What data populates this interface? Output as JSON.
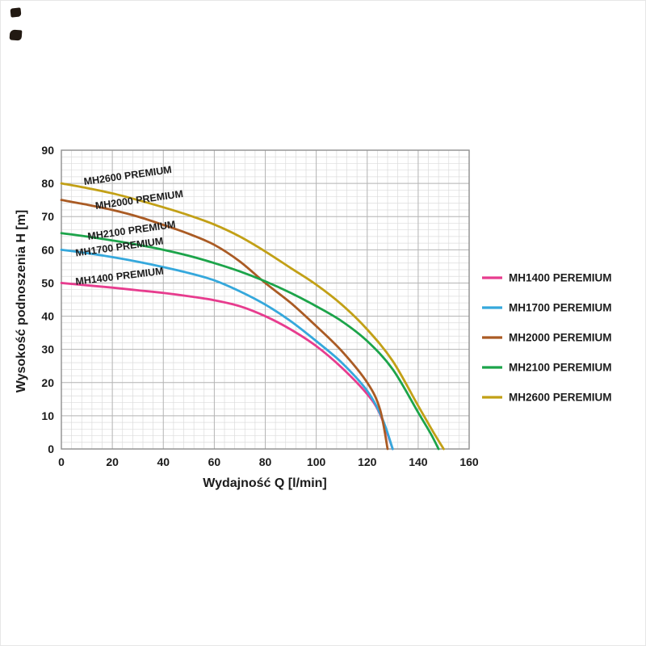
{
  "decor": {
    "scan_mark_color": "#221912"
  },
  "chart_data": {
    "type": "line",
    "title": "",
    "xlabel": "Wydajność Q [l/min]",
    "ylabel": "Wysokość podnoszenia H [m]",
    "xlim": [
      0,
      160
    ],
    "ylim": [
      0,
      90
    ],
    "x_ticks": [
      0,
      20,
      40,
      60,
      80,
      100,
      120,
      140,
      160
    ],
    "y_ticks": [
      0,
      10,
      20,
      30,
      40,
      50,
      60,
      70,
      80,
      90
    ],
    "x_minor_step": 4,
    "y_minor_step": 2,
    "grid": true,
    "legend_position": "right",
    "grid_minor_color": "#dcdcdc",
    "grid_major_color": "#b5b5b5",
    "border_color": "#8f8f8f",
    "series": [
      {
        "name": "MH1400 PEREMIUM",
        "color": "#e73c8e",
        "points": [
          [
            0,
            50
          ],
          [
            10,
            49.3
          ],
          [
            20,
            48.6
          ],
          [
            30,
            47.8
          ],
          [
            40,
            47
          ],
          [
            50,
            46
          ],
          [
            60,
            44.8
          ],
          [
            70,
            43
          ],
          [
            80,
            40
          ],
          [
            90,
            36
          ],
          [
            100,
            31
          ],
          [
            110,
            24.5
          ],
          [
            120,
            16.5
          ],
          [
            125,
            10.5
          ],
          [
            130,
            0
          ]
        ]
      },
      {
        "name": "MH1700 PEREMIUM",
        "color": "#35a8dc",
        "points": [
          [
            0,
            60
          ],
          [
            10,
            59
          ],
          [
            20,
            57.8
          ],
          [
            30,
            56.4
          ],
          [
            40,
            54.8
          ],
          [
            50,
            53
          ],
          [
            60,
            50.8
          ],
          [
            70,
            47.5
          ],
          [
            80,
            43.5
          ],
          [
            90,
            38.5
          ],
          [
            100,
            32.5
          ],
          [
            110,
            26
          ],
          [
            120,
            17.5
          ],
          [
            126,
            9
          ],
          [
            130,
            0
          ]
        ]
      },
      {
        "name": "MH2000 PEREMIUM",
        "color": "#aa5b24",
        "points": [
          [
            0,
            75
          ],
          [
            10,
            73.6
          ],
          [
            20,
            72
          ],
          [
            30,
            70
          ],
          [
            40,
            67.5
          ],
          [
            50,
            64.8
          ],
          [
            60,
            61.5
          ],
          [
            70,
            56.5
          ],
          [
            80,
            50
          ],
          [
            90,
            44
          ],
          [
            100,
            37
          ],
          [
            110,
            29.5
          ],
          [
            120,
            20
          ],
          [
            125,
            12
          ],
          [
            128,
            0
          ]
        ]
      },
      {
        "name": "MH2100 PEREMIUM",
        "color": "#1ca44a",
        "points": [
          [
            0,
            65
          ],
          [
            10,
            64
          ],
          [
            20,
            62.8
          ],
          [
            30,
            61.5
          ],
          [
            40,
            60
          ],
          [
            50,
            58.2
          ],
          [
            60,
            56
          ],
          [
            70,
            53.5
          ],
          [
            80,
            50.5
          ],
          [
            90,
            47
          ],
          [
            100,
            43
          ],
          [
            110,
            38.5
          ],
          [
            120,
            32.5
          ],
          [
            130,
            24
          ],
          [
            140,
            11
          ],
          [
            145,
            4.5
          ],
          [
            148,
            0
          ]
        ]
      },
      {
        "name": "MH2600 PEREMIUM",
        "color": "#c2a016",
        "points": [
          [
            0,
            80
          ],
          [
            10,
            78.6
          ],
          [
            20,
            77
          ],
          [
            30,
            75
          ],
          [
            40,
            72.8
          ],
          [
            50,
            70.4
          ],
          [
            60,
            67.6
          ],
          [
            70,
            64
          ],
          [
            80,
            59.5
          ],
          [
            90,
            54.5
          ],
          [
            100,
            49.5
          ],
          [
            110,
            43.5
          ],
          [
            120,
            36
          ],
          [
            130,
            26.5
          ],
          [
            140,
            13
          ],
          [
            146,
            5
          ],
          [
            150,
            0
          ]
        ]
      }
    ],
    "curve_labels": [
      {
        "text": "MH2600 PREMIUM",
        "q": 9,
        "h": 79.5,
        "rotation": -8
      },
      {
        "text": "MH2000 PREMIUM",
        "q": 13.5,
        "h": 72.2,
        "rotation": -8
      },
      {
        "text": "MH2100 PREMIUM",
        "q": 10.5,
        "h": 63,
        "rotation": -8
      },
      {
        "text": "MH1700 PREMIUM",
        "q": 5.7,
        "h": 58,
        "rotation": -8
      },
      {
        "text": "MH1400 PREMIUM",
        "q": 5.7,
        "h": 49.4,
        "rotation": -7
      }
    ]
  }
}
